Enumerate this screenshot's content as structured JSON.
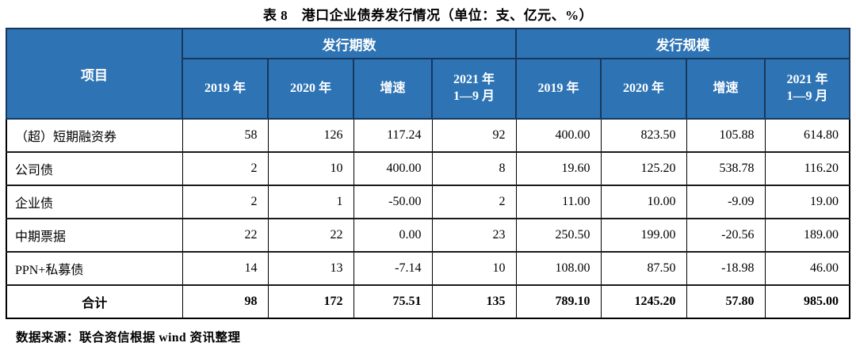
{
  "title": "表 8　港口企业债券发行情况（单位：支、亿元、%）",
  "table": {
    "item_header": "项目",
    "groups": [
      {
        "label": "发行期数"
      },
      {
        "label": "发行规模"
      }
    ],
    "sub_headers": [
      "2019 年",
      "2020 年",
      "增速",
      "2021 年\n1—9 月",
      "2019 年",
      "2020 年",
      "增速",
      "2021 年\n1—9 月"
    ],
    "rows": [
      {
        "label": "（超）短期融资券",
        "values": [
          "58",
          "126",
          "117.24",
          "92",
          "400.00",
          "823.50",
          "105.88",
          "614.80"
        ]
      },
      {
        "label": "公司债",
        "values": [
          "2",
          "10",
          "400.00",
          "8",
          "19.60",
          "125.20",
          "538.78",
          "116.20"
        ]
      },
      {
        "label": "企业债",
        "values": [
          "2",
          "1",
          "-50.00",
          "2",
          "11.00",
          "10.00",
          "-9.09",
          "19.00"
        ]
      },
      {
        "label": "中期票据",
        "values": [
          "22",
          "22",
          "0.00",
          "23",
          "250.50",
          "199.00",
          "-20.56",
          "189.00"
        ]
      },
      {
        "label": "PPN+私募债",
        "values": [
          "14",
          "13",
          "-7.14",
          "10",
          "108.00",
          "87.50",
          "-18.98",
          "46.00"
        ]
      }
    ],
    "total_row": {
      "label": "合计",
      "values": [
        "98",
        "172",
        "75.51",
        "135",
        "789.10",
        "1245.20",
        "57.80",
        "985.00"
      ]
    }
  },
  "footer": "数据来源：联合资信根据 wind 资讯整理",
  "colors": {
    "header_bg": "#2E74B5",
    "header_border": "#17375E",
    "header_text": "#FFFFFF",
    "body_text": "#000000"
  }
}
